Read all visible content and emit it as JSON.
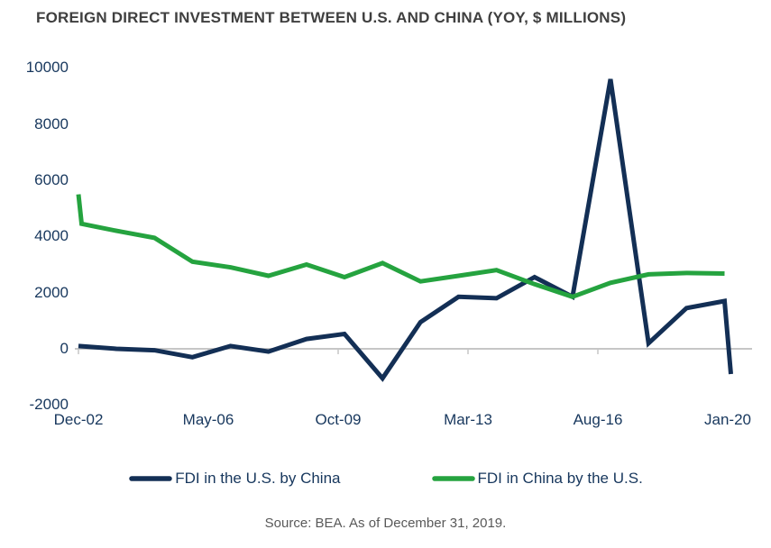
{
  "chart_data": {
    "type": "line",
    "title": "FOREIGN DIRECT INVESTMENT BETWEEN U.S. AND CHINA (YOY, $ MILLIONS)",
    "source_note": "Source: BEA. As of December 31, 2019.",
    "point_unit": "months since Dec-2002, value in $ millions",
    "grid": false,
    "legend_position": "bottom",
    "axis_color": "#c6c6c6",
    "x_axis": {
      "tick_labels": [
        "Dec-02",
        "May-06",
        "Oct-09",
        "Mar-13",
        "Aug-16",
        "Jan-20"
      ],
      "tick_month_offsets": [
        0,
        41,
        82,
        123,
        164,
        205
      ]
    },
    "y_axis": {
      "ticks": [
        10000,
        8000,
        6000,
        4000,
        2000,
        0,
        -2000
      ],
      "range": [
        -2000,
        10000
      ]
    },
    "series": [
      {
        "name": "FDI in the U.S. by China",
        "color": "#132f55",
        "points": [
          [
            0,
            100
          ],
          [
            12,
            0
          ],
          [
            24,
            -50
          ],
          [
            36,
            -300
          ],
          [
            48,
            100
          ],
          [
            60,
            -100
          ],
          [
            72,
            350
          ],
          [
            84,
            530
          ],
          [
            96,
            -1050
          ],
          [
            108,
            950
          ],
          [
            120,
            1850
          ],
          [
            132,
            1800
          ],
          [
            144,
            2550
          ],
          [
            156,
            1850
          ],
          [
            168,
            9600
          ],
          [
            180,
            200
          ],
          [
            192,
            1450
          ],
          [
            204,
            1700
          ],
          [
            206,
            -900
          ]
        ]
      },
      {
        "name": "FDI in China by the U.S.",
        "color": "#25a33f",
        "points": [
          [
            0,
            5500
          ],
          [
            1,
            4450
          ],
          [
            12,
            4200
          ],
          [
            24,
            3950
          ],
          [
            36,
            3100
          ],
          [
            48,
            2900
          ],
          [
            60,
            2600
          ],
          [
            72,
            3000
          ],
          [
            84,
            2550
          ],
          [
            96,
            3050
          ],
          [
            108,
            2400
          ],
          [
            120,
            2600
          ],
          [
            132,
            2800
          ],
          [
            144,
            2300
          ],
          [
            156,
            1850
          ],
          [
            168,
            2350
          ],
          [
            180,
            2650
          ],
          [
            192,
            2700
          ],
          [
            204,
            2680
          ]
        ]
      }
    ]
  }
}
